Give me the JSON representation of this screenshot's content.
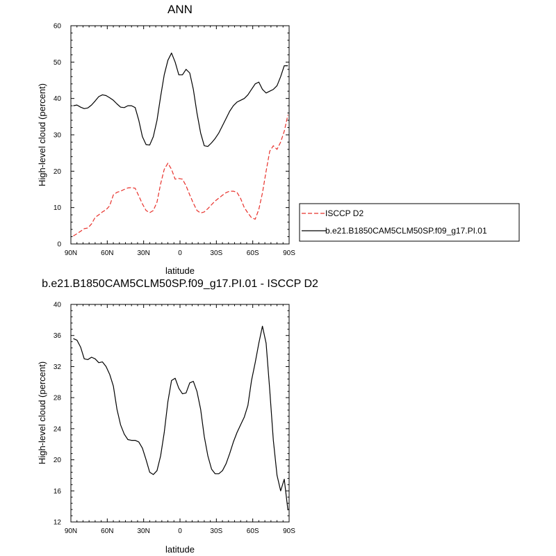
{
  "chart_data": [
    {
      "type": "line",
      "title": "ANN",
      "xlabel": "latitude",
      "ylabel": "High-level cloud (percent)",
      "xlim": [
        -90,
        90
      ],
      "ylim": [
        0,
        60
      ],
      "xticks": [
        -90,
        -60,
        -30,
        0,
        30,
        60,
        90
      ],
      "xtick_labels": [
        "90N",
        "60N",
        "30N",
        "0",
        "30S",
        "60S",
        "90S"
      ],
      "yticks": [
        0,
        10,
        20,
        30,
        40,
        50,
        60
      ],
      "ytick_labels": [
        "0",
        "10",
        "20",
        "30",
        "40",
        "50",
        "60"
      ],
      "legend": "right",
      "series": [
        {
          "name": "ISCCP D2",
          "color": "#e8302a",
          "dash": "dashed",
          "x": [
            -88,
            -85,
            -82,
            -79,
            -76,
            -73,
            -70,
            -67,
            -64,
            -61,
            -58,
            -55,
            -52,
            -49,
            -46,
            -43,
            -40,
            -37,
            -34,
            -31,
            -28,
            -25,
            -22,
            -19,
            -16,
            -13,
            -10,
            -7,
            -4,
            -1,
            2,
            5,
            8,
            11,
            14,
            17,
            20,
            23,
            26,
            29,
            32,
            35,
            38,
            41,
            44,
            47,
            50,
            53,
            56,
            59,
            62,
            65,
            68,
            71,
            74,
            77,
            80,
            83,
            86,
            89
          ],
          "y": [
            2.2,
            2.8,
            3.5,
            4.2,
            4.4,
            5.5,
            7.3,
            8.0,
            8.8,
            9.4,
            10.5,
            13.5,
            14.2,
            14.5,
            15.0,
            15.4,
            15.5,
            15.3,
            13.2,
            11.0,
            9.2,
            8.6,
            9.2,
            11.5,
            16.5,
            20.5,
            22.2,
            20.5,
            17.8,
            18.0,
            17.8,
            16.0,
            13.5,
            11.2,
            9.2,
            8.5,
            8.8,
            9.7,
            10.8,
            11.8,
            12.6,
            13.4,
            14.1,
            14.5,
            14.5,
            14.2,
            12.5,
            10.0,
            8.5,
            7.2,
            6.8,
            9.5,
            14.0,
            20.0,
            25.5,
            27.0,
            26.0,
            28.0,
            31.0,
            35.5
          ]
        },
        {
          "name": "b.e21.B1850CAM5CLM50SP.f09_g17.PI.01",
          "color": "#000000",
          "dash": "solid",
          "x": [
            -88,
            -85,
            -82,
            -79,
            -76,
            -73,
            -70,
            -67,
            -64,
            -61,
            -58,
            -55,
            -52,
            -49,
            -46,
            -43,
            -40,
            -37,
            -34,
            -31,
            -28,
            -25,
            -22,
            -19,
            -16,
            -13,
            -10,
            -7,
            -4,
            -1,
            2,
            5,
            8,
            11,
            14,
            17,
            20,
            23,
            26,
            29,
            32,
            35,
            38,
            41,
            44,
            47,
            50,
            53,
            56,
            59,
            62,
            65,
            68,
            71,
            74,
            77,
            80,
            83,
            86,
            89
          ],
          "y": [
            38.0,
            38.2,
            37.6,
            37.2,
            37.4,
            38.2,
            39.3,
            40.5,
            41.0,
            40.8,
            40.2,
            39.5,
            38.5,
            37.6,
            37.5,
            38.0,
            38.0,
            37.5,
            34.0,
            29.5,
            27.3,
            27.2,
            29.5,
            34.0,
            40.5,
            46.5,
            50.5,
            52.5,
            50.0,
            46.5,
            46.5,
            48.0,
            47.0,
            42.5,
            36.0,
            30.5,
            27.0,
            26.8,
            27.8,
            29.0,
            30.5,
            32.5,
            34.5,
            36.5,
            38.0,
            39.0,
            39.5,
            40.0,
            41.0,
            42.5,
            44.0,
            44.5,
            42.5,
            41.5,
            42.0,
            42.5,
            43.5,
            46.0,
            49.0,
            49.0
          ]
        }
      ]
    },
    {
      "type": "line",
      "title": "b.e21.B1850CAM5CLM50SP.f09_g17.PI.01 - ISCCP D2",
      "xlabel": "latitude",
      "ylabel": "High-level cloud (percent)",
      "xlim": [
        -90,
        90
      ],
      "ylim": [
        12,
        40
      ],
      "xticks": [
        -90,
        -60,
        -30,
        0,
        30,
        60,
        90
      ],
      "xtick_labels": [
        "90N",
        "60N",
        "30N",
        "0",
        "30S",
        "60S",
        "90S"
      ],
      "yticks": [
        12,
        16,
        20,
        24,
        28,
        32,
        36,
        40
      ],
      "ytick_labels": [
        "12",
        "16",
        "20",
        "24",
        "28",
        "32",
        "36",
        "40"
      ],
      "series": [
        {
          "color": "#000000",
          "dash": "solid",
          "x": [
            -88,
            -85,
            -82,
            -79,
            -76,
            -73,
            -70,
            -67,
            -64,
            -61,
            -58,
            -55,
            -52,
            -49,
            -46,
            -43,
            -40,
            -37,
            -34,
            -31,
            -28,
            -25,
            -22,
            -19,
            -16,
            -13,
            -10,
            -7,
            -4,
            -1,
            2,
            5,
            8,
            11,
            14,
            17,
            20,
            23,
            26,
            29,
            32,
            35,
            38,
            41,
            44,
            47,
            50,
            53,
            56,
            59,
            62,
            65,
            68,
            71,
            74,
            77,
            80,
            83,
            86,
            89
          ],
          "y": [
            35.6,
            35.4,
            34.5,
            33.0,
            32.9,
            33.2,
            33.0,
            32.5,
            32.6,
            32.0,
            31.0,
            29.5,
            26.5,
            24.5,
            23.3,
            22.6,
            22.5,
            22.5,
            22.3,
            21.5,
            20.0,
            18.4,
            18.1,
            18.6,
            20.5,
            23.5,
            27.5,
            30.2,
            30.5,
            29.2,
            28.5,
            28.6,
            29.9,
            30.1,
            28.8,
            26.5,
            23.0,
            20.5,
            18.8,
            18.2,
            18.2,
            18.6,
            19.5,
            20.8,
            22.3,
            23.5,
            24.5,
            25.5,
            27.0,
            30.2,
            32.5,
            35.0,
            37.2,
            35.0,
            29.0,
            22.5,
            18.0,
            16.0,
            17.5,
            13.5
          ]
        }
      ]
    }
  ]
}
